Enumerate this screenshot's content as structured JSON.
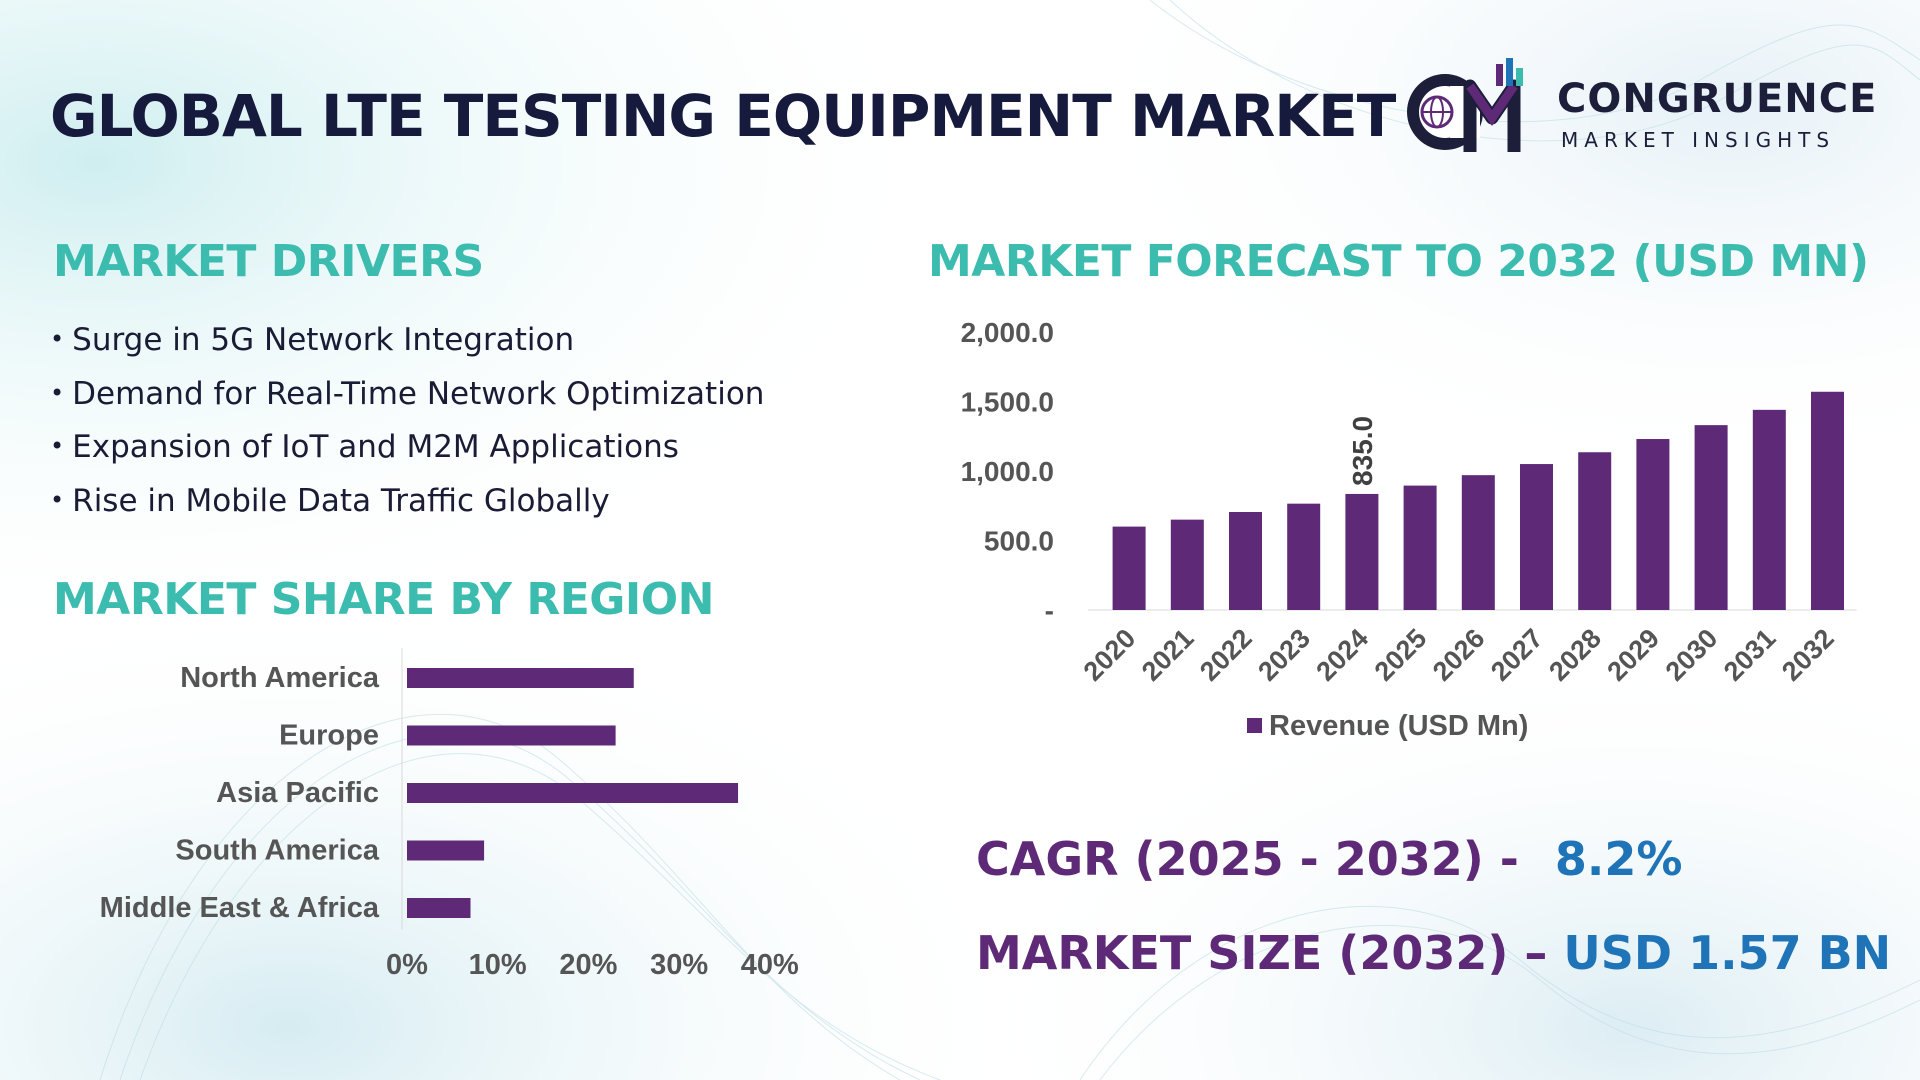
{
  "title": "GLOBAL LTE TESTING EQUIPMENT MARKET",
  "logo": {
    "name": "CONGRUENCE",
    "tagline": "MARKET INSIGHTS",
    "icon": "cmi-globe-bars-logo"
  },
  "colors": {
    "title": "#161a3d",
    "section_heading": "#3bbcae",
    "bar": "#5e2a77",
    "stat_label": "#5e2a77",
    "stat_value": "#1f74b8",
    "axis_text": "#555555"
  },
  "drivers": {
    "heading": "MARKET DRIVERS",
    "items": [
      "Surge in 5G Network Integration",
      "Demand for Real-Time Network Optimization",
      "Expansion of IoT and M2M Applications",
      "Rise in Mobile Data Traffic Globally"
    ]
  },
  "region": {
    "heading": "MARKET SHARE BY REGION"
  },
  "forecast": {
    "heading": "MARKET FORECAST TO 2032 (USD MN)"
  },
  "stats": {
    "cagr_label": "CAGR (2025 - 2032) -",
    "cagr_value": "8.2%",
    "size_label": "MARKET SIZE (2032) –",
    "size_value": "USD 1.57 BN"
  },
  "chart_data": [
    {
      "type": "bar",
      "orientation": "horizontal",
      "categories": [
        "North America",
        "Europe",
        "Asia Pacific",
        "South America",
        "Middle East & Africa"
      ],
      "values": [
        25,
        23,
        36.5,
        8.5,
        7
      ],
      "xlim": [
        0,
        40
      ],
      "x_ticks": [
        "0%",
        "10%",
        "20%",
        "30%",
        "40%"
      ],
      "grid": false
    },
    {
      "type": "bar",
      "categories": [
        "2020",
        "2021",
        "2022",
        "2023",
        "2024",
        "2025",
        "2026",
        "2027",
        "2028",
        "2029",
        "2030",
        "2031",
        "2032"
      ],
      "series": [
        {
          "name": "Revenue (USD Mn)",
          "values": [
            600,
            650,
            705,
            765,
            835,
            895,
            970,
            1050,
            1135,
            1230,
            1330,
            1440,
            1570
          ]
        }
      ],
      "data_labels": [
        {
          "category": "2024",
          "text": "835.0"
        }
      ],
      "ylim": [
        0,
        2000
      ],
      "y_ticks": [
        "-",
        "500.0",
        "1,000.0",
        "1,500.0",
        "2,000.0"
      ],
      "legend": "bottom",
      "grid": false
    }
  ]
}
